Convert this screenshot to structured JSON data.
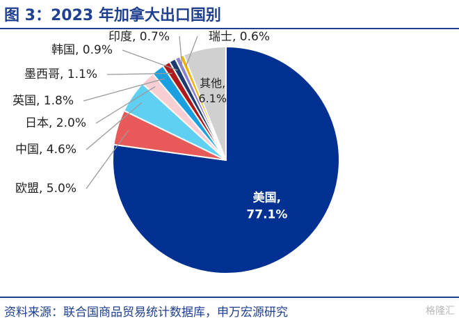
{
  "header": {
    "title": "图 3：2023 年加拿大出口国别"
  },
  "footer": {
    "source": "资料来源：联合国商品贸易统计数据库，申万宏源研究",
    "watermark": "格隆汇"
  },
  "chart_data": {
    "type": "pie",
    "title": "图 3：2023 年加拿大出口国别",
    "slices": [
      {
        "label": "美国",
        "value": 77.1,
        "display": "77.1%",
        "color": "#003091"
      },
      {
        "label": "欧盟",
        "value": 5.0,
        "display": "5.0%",
        "color": "#e85a5a"
      },
      {
        "label": "中国",
        "value": 4.6,
        "display": "4.6%",
        "color": "#5fd0f2"
      },
      {
        "label": "日本",
        "value": 2.0,
        "display": "2.0%",
        "color": "#f7cfd2"
      },
      {
        "label": "英国",
        "value": 1.8,
        "display": "1.8%",
        "color": "#1aa0e0"
      },
      {
        "label": "墨西哥",
        "value": 1.1,
        "display": "1.1%",
        "color": "#b01919"
      },
      {
        "label": "韩国",
        "value": 0.9,
        "display": "0.9%",
        "color": "#1d3a6e"
      },
      {
        "label": "印度",
        "value": 0.7,
        "display": "0.7%",
        "color": "#8a7fd0"
      },
      {
        "label": "瑞士",
        "value": 0.6,
        "display": "0.6%",
        "color": "#f0b000"
      },
      {
        "label": "其他",
        "value": 6.1,
        "display": "6.1%",
        "color": "#d0d0d0"
      }
    ]
  }
}
